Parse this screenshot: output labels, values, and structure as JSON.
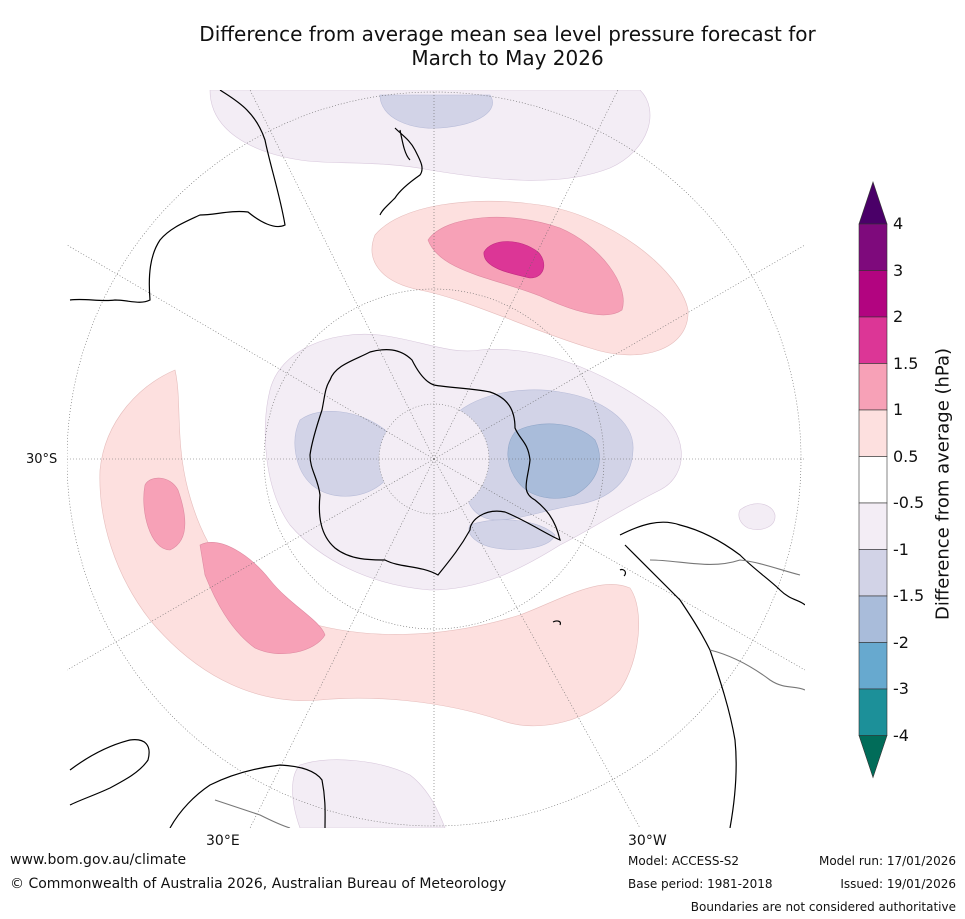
{
  "title": {
    "line1": "Difference from average mean sea level pressure forecast for",
    "line2": "March to May 2026"
  },
  "map": {
    "projection": "south-polar-stereographic",
    "labels": {
      "lat_30s": "30°S",
      "lon_30e": "30°E",
      "lon_30w": "30°W"
    }
  },
  "colorbar": {
    "title": "Difference from average (hPa)",
    "ticks": [
      "4",
      "3",
      "2",
      "1.5",
      "1",
      "0.5",
      "-0.5",
      "-1",
      "-1.5",
      "-2",
      "-3",
      "-4"
    ],
    "bins": [
      {
        "range": ">4",
        "color": "#4a0068"
      },
      {
        "range": "3 to 4",
        "color": "#7e0a7c"
      },
      {
        "range": "2 to 3",
        "color": "#b20480"
      },
      {
        "range": "1.5 to 2",
        "color": "#dc3696"
      },
      {
        "range": "1 to 1.5",
        "color": "#f7a1b7"
      },
      {
        "range": "0.5 to 1",
        "color": "#fde0df"
      },
      {
        "range": "-0.5 to 0.5",
        "color": "#ffffff"
      },
      {
        "range": "-1 to -0.5",
        "color": "#f3edf5"
      },
      {
        "range": "-1.5 to -1",
        "color": "#d2d3e7"
      },
      {
        "range": "-2 to -1.5",
        "color": "#a9bcda"
      },
      {
        "range": "-3 to -2",
        "color": "#67a9cf"
      },
      {
        "range": "-4 to -3",
        "color": "#1c9099"
      },
      {
        "range": "<-4",
        "color": "#016c59"
      }
    ]
  },
  "footer": {
    "url": "www.bom.gov.au/climate",
    "copyright": "© Commonwealth of Australia 2026, Australian Bureau of Meteorology",
    "model": "Model: ACCESS-S2",
    "base_period": "Base period: 1981-2018",
    "model_run": "Model run: 17/01/2026",
    "issued": "Issued: 19/01/2026",
    "disclaimer": "Boundaries are not considered authoritative"
  }
}
